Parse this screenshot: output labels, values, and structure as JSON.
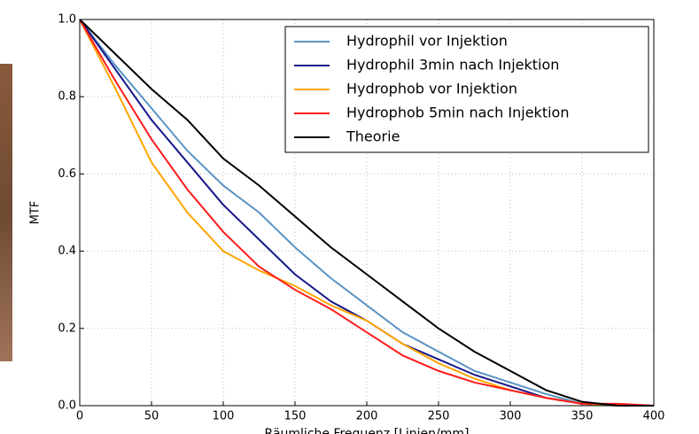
{
  "chart_data": {
    "type": "line",
    "xlabel": "Räumliche Frequenz [Linien/mm]",
    "ylabel": "MTF",
    "x": [
      0,
      25,
      50,
      75,
      100,
      125,
      150,
      175,
      200,
      225,
      250,
      275,
      300,
      325,
      350,
      375,
      400
    ],
    "series": [
      {
        "name": "Hydrophil vor Injektion",
        "color": "#5a93c4",
        "values": [
          1.0,
          0.88,
          0.77,
          0.66,
          0.57,
          0.5,
          0.41,
          0.33,
          0.26,
          0.19,
          0.14,
          0.09,
          0.06,
          0.03,
          0.005,
          0.0,
          0.0
        ]
      },
      {
        "name": "Hydrophil 3min nach Injektion",
        "color": "#16168c",
        "values": [
          1.0,
          0.87,
          0.74,
          0.63,
          0.52,
          0.43,
          0.34,
          0.27,
          0.22,
          0.16,
          0.12,
          0.08,
          0.05,
          0.02,
          0.005,
          0.0,
          0.0
        ]
      },
      {
        "name": "Hydrophob vor Injektion",
        "color": "#ffa500",
        "values": [
          1.0,
          0.82,
          0.63,
          0.5,
          0.4,
          0.35,
          0.31,
          0.26,
          0.22,
          0.16,
          0.11,
          0.07,
          0.04,
          0.02,
          0.005,
          0.0,
          0.0
        ]
      },
      {
        "name": "Hydrophob 5min nach Injektion",
        "color": "#ff1a1a",
        "values": [
          1.0,
          0.84,
          0.69,
          0.56,
          0.45,
          0.36,
          0.3,
          0.25,
          0.19,
          0.13,
          0.09,
          0.06,
          0.04,
          0.02,
          0.005,
          0.005,
          0.0
        ]
      },
      {
        "name": "Theorie",
        "color": "#000000",
        "values": [
          1.0,
          0.91,
          0.82,
          0.74,
          0.64,
          0.57,
          0.49,
          0.41,
          0.34,
          0.27,
          0.2,
          0.14,
          0.09,
          0.04,
          0.01,
          0.0,
          0.0
        ]
      }
    ],
    "xlim": [
      0,
      400
    ],
    "ylim": [
      0,
      1
    ],
    "xticks": [
      0,
      50,
      100,
      150,
      200,
      250,
      300,
      350,
      400
    ],
    "yticks": [
      {
        "value": 0,
        "label": "0.0"
      },
      0.2,
      0.4,
      0.6,
      0.8,
      {
        "value": 1,
        "label": "1.0"
      }
    ],
    "grid": true,
    "legend": "upper right"
  }
}
